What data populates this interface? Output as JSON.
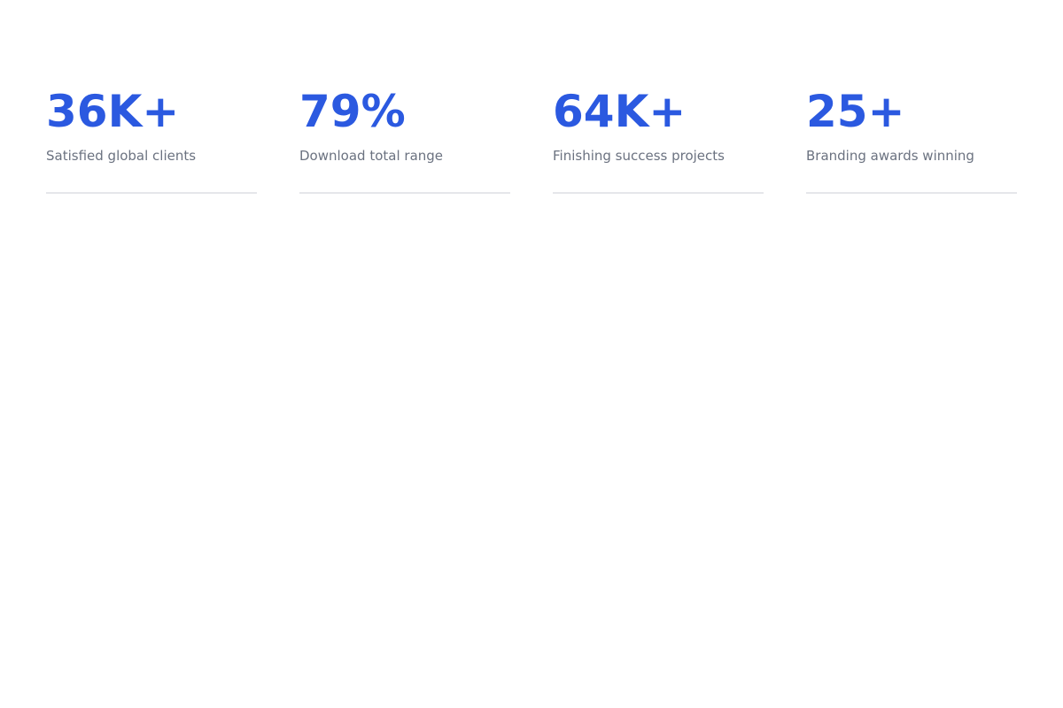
{
  "page": {
    "background_color": "#ffffff",
    "accent_color": "#2b59e0",
    "label_color": "#6b7280",
    "divider_color": "#e5e6ea"
  },
  "stats": {
    "items": [
      {
        "value": "36K+",
        "label": "Satisfied global clients"
      },
      {
        "value": "79%",
        "label": "Download total range"
      },
      {
        "value": "64K+",
        "label": "Finishing success projects"
      },
      {
        "value": "25+",
        "label": "Branding awards winning"
      }
    ]
  }
}
